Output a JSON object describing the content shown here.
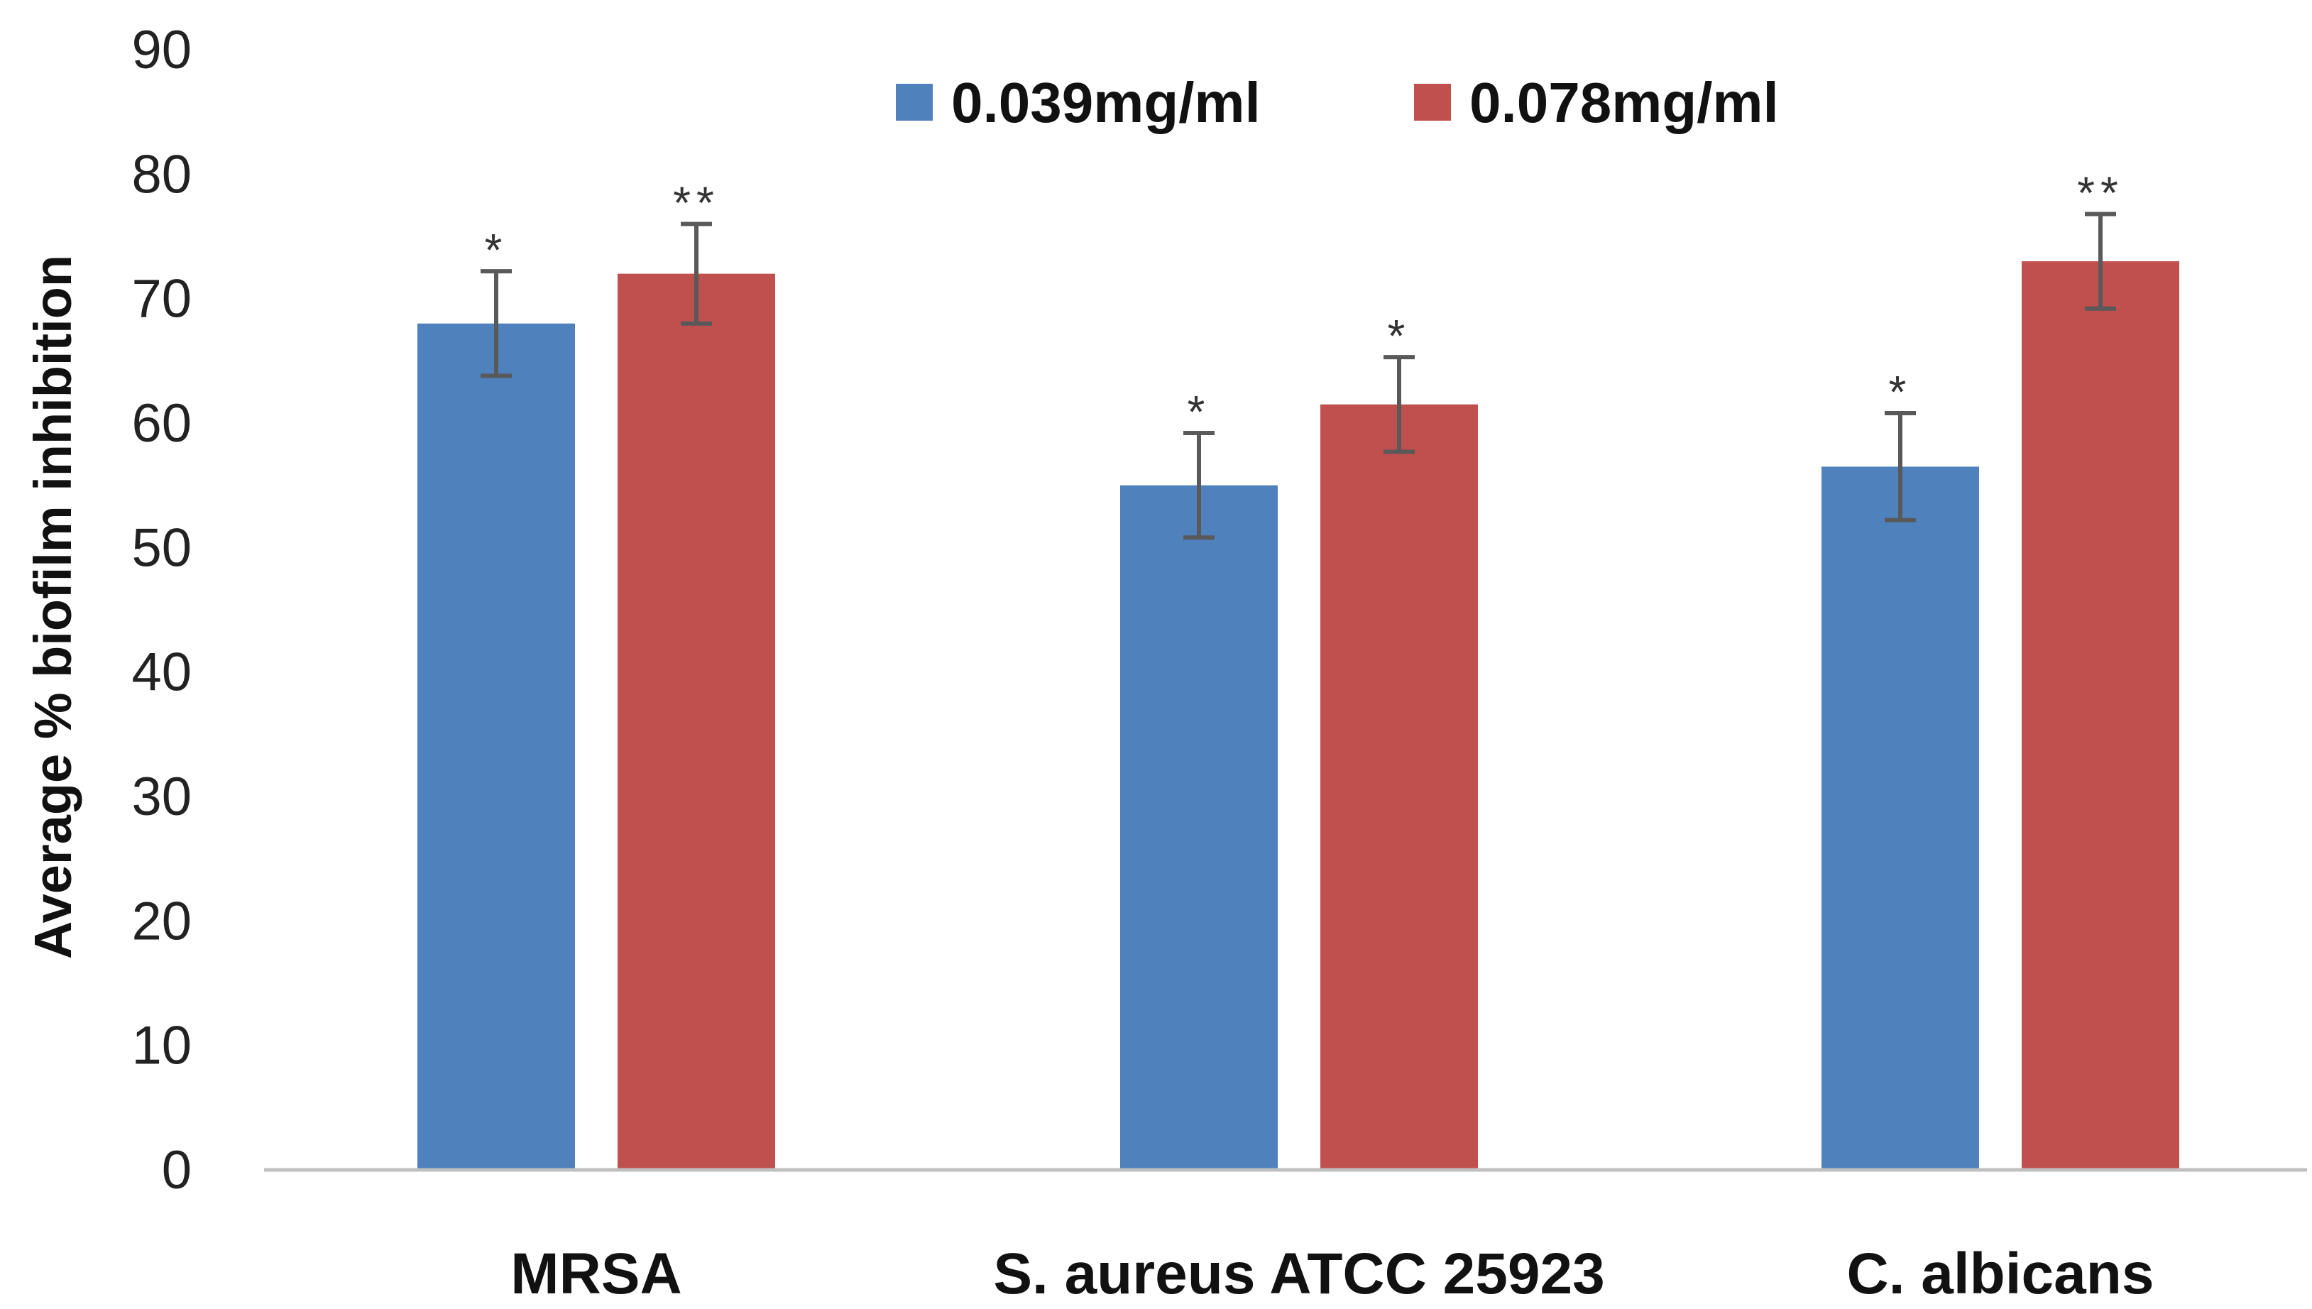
{
  "chart_data": {
    "type": "bar",
    "title": "",
    "xlabel": "",
    "ylabel": "Average % biofilm inhibition",
    "ylim": [
      0,
      90
    ],
    "yticks": [
      0,
      10,
      20,
      30,
      40,
      50,
      60,
      70,
      80,
      90
    ],
    "categories": [
      "MRSA",
      "S. aureus ATCC 25923",
      "C. albicans"
    ],
    "series": [
      {
        "name": "0.039mg/ml",
        "color": "#4F81BD",
        "values": [
          68,
          55,
          56.5
        ],
        "errors": [
          4.2,
          4.2,
          4.3
        ],
        "significance": [
          "*",
          "*",
          "*"
        ]
      },
      {
        "name": "0.078mg/ml",
        "color": "#C0504D",
        "values": [
          72,
          61.5,
          73
        ],
        "errors": [
          4,
          3.8,
          3.8
        ],
        "significance": [
          "**",
          "*",
          "**"
        ]
      }
    ],
    "legend_position": "top-center",
    "grid": false,
    "axis_color": "#BFBFBF",
    "error_bar_color": "#595959"
  }
}
